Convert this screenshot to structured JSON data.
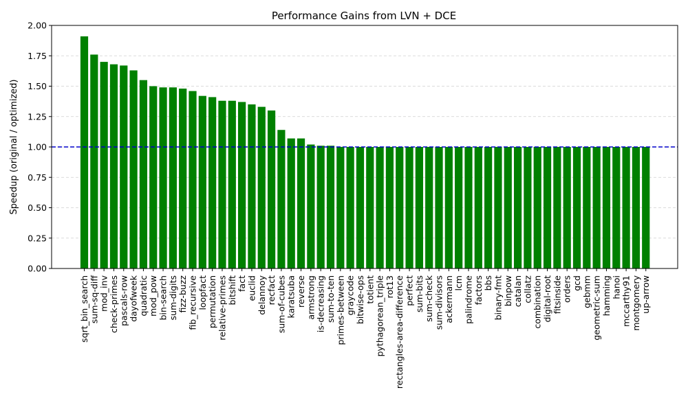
{
  "chart_data": {
    "type": "bar",
    "title": "Performance Gains from LVN + DCE",
    "xlabel": "",
    "ylabel": "Speedup (original / optimized)",
    "ylim": [
      0,
      2.0
    ],
    "yticks": [
      "0.00",
      "0.25",
      "0.50",
      "0.75",
      "1.00",
      "1.25",
      "1.50",
      "1.75",
      "2.00"
    ],
    "grid": "y-dashed",
    "bar_color": "#008000",
    "reference_line": {
      "value": 1.0,
      "color": "#0000cc",
      "style": "dashed"
    },
    "categories": [
      "sqrt_bin_search",
      "sum-sq-diff",
      "mod_inv",
      "check-primes",
      "pascals-row",
      "dayofweek",
      "quadratic",
      "mod_pow",
      "bin-search",
      "sum-digits",
      "fizz-buzz",
      "fib_recursive",
      "loopfact",
      "permutation",
      "relative-primes",
      "bitshift",
      "fact",
      "euclid",
      "delannoy",
      "recfact",
      "sum-of-cubes",
      "karatsuba",
      "reverse",
      "armstrong",
      "is-decreasing",
      "sum-to-ten",
      "primes-between",
      "graycode",
      "bitwise-ops",
      "totient",
      "pythagorean_triple",
      "rot13",
      "rectangles-area-difference",
      "perfect",
      "sum-bits",
      "sum-check",
      "sum-divisors",
      "ackermann",
      "lcm",
      "palindrome",
      "factors",
      "bbs",
      "binary-fmt",
      "binpow",
      "catalan",
      "collatz",
      "combination",
      "digital-root",
      "fitsinside",
      "orders",
      "gcd",
      "gebmm",
      "geometric-sum",
      "hamming",
      "hanoi",
      "mccarthy91",
      "montgomery",
      "up-arrow"
    ],
    "values": [
      1.91,
      1.76,
      1.7,
      1.68,
      1.67,
      1.63,
      1.55,
      1.5,
      1.49,
      1.49,
      1.48,
      1.46,
      1.42,
      1.41,
      1.38,
      1.38,
      1.37,
      1.35,
      1.33,
      1.3,
      1.14,
      1.07,
      1.07,
      1.02,
      1.01,
      1.01,
      1.0,
      1.0,
      1.0,
      1.0,
      1.0,
      1.0,
      1.0,
      1.0,
      1.0,
      1.0,
      1.0,
      1.0,
      1.0,
      1.0,
      1.0,
      1.0,
      1.0,
      1.0,
      1.0,
      1.0,
      1.0,
      1.0,
      1.0,
      1.0,
      1.0,
      1.0,
      1.0,
      1.0,
      1.0,
      1.0,
      1.0,
      1.0
    ]
  }
}
